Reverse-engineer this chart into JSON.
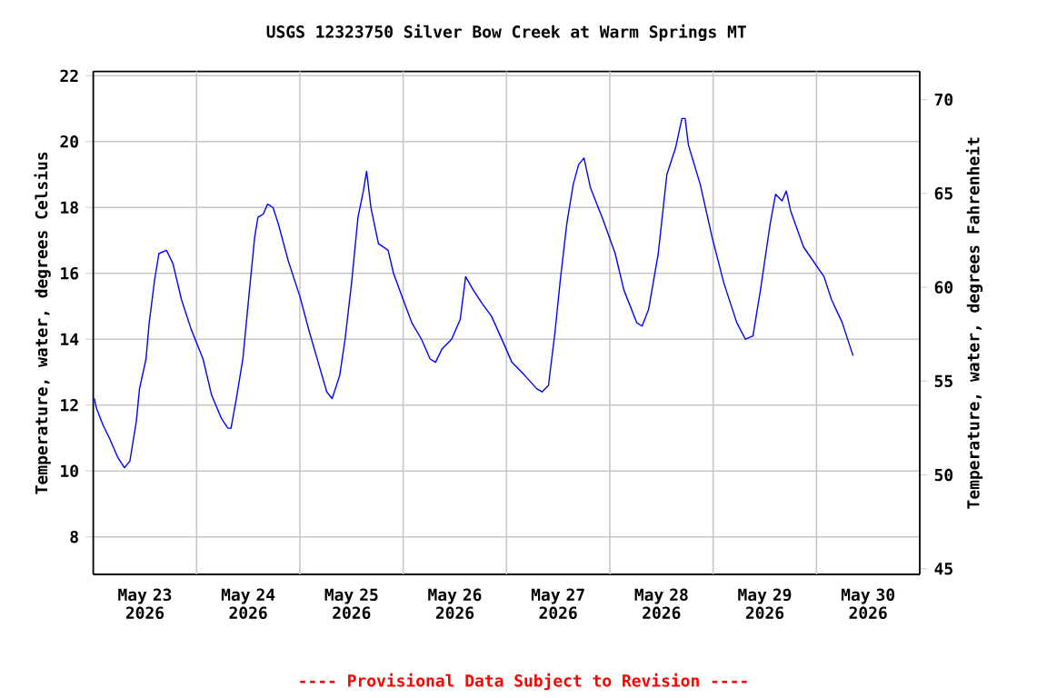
{
  "chart_data": {
    "type": "line",
    "title": "USGS 12323750 Silver Bow Creek at Warm Springs MT",
    "ylabel": "Temperature, water, degrees Celsius",
    "y2label": "Temperature, water, degrees Fahrenheit",
    "annotations": [
      "---- Provisional Data Subject to Revision ----"
    ],
    "xlim": [
      "2026-05-23",
      "2026-05-31"
    ],
    "xticks": [
      {
        "value": "2026-05-23T12:00",
        "label": "May 23 2026"
      },
      {
        "value": "2026-05-24T12:00",
        "label": "May 24 2026"
      },
      {
        "value": "2026-05-25T12:00",
        "label": "May 25 2026"
      },
      {
        "value": "2026-05-26T12:00",
        "label": "May 26 2026"
      },
      {
        "value": "2026-05-27T12:00",
        "label": "May 27 2026"
      },
      {
        "value": "2026-05-28T12:00",
        "label": "May 28 2026"
      },
      {
        "value": "2026-05-29T12:00",
        "label": "May 29 2026"
      },
      {
        "value": "2026-05-30T12:00",
        "label": "May 30 2026"
      },
      {
        "value": "2026-05-24",
        "label": null
      },
      {
        "value": "2026-05-25",
        "label": null
      },
      {
        "value": "2026-05-26",
        "label": null
      },
      {
        "value": "2026-05-27",
        "label": null
      },
      {
        "value": "2026-05-28",
        "label": null
      },
      {
        "value": "2026-05-29",
        "label": null
      },
      {
        "value": "2026-05-30",
        "label": null
      }
    ],
    "ylim": [
      6.86,
      22.13
    ],
    "yticks": [
      8,
      10,
      12,
      14,
      16,
      18,
      20,
      22
    ],
    "y2lim": [
      44.7,
      71.5
    ],
    "y2ticks": [
      45,
      50,
      55,
      60,
      65,
      70
    ],
    "grid": true,
    "marker": "none",
    "line_style": "solid",
    "x": [
      "2026-05-23T00:15",
      "2026-05-23T00:45",
      "2026-05-23T02:15",
      "2026-05-23T03:45",
      "2026-05-23T05:45",
      "2026-05-23T07:15",
      "2026-05-23T08:30",
      "2026-05-23T10:00",
      "2026-05-23T10:45",
      "2026-05-23T12:15",
      "2026-05-23T13:00",
      "2026-05-23T14:15",
      "2026-05-23T15:15",
      "2026-05-23T17:00",
      "2026-05-23T18:30",
      "2026-05-23T20:30",
      "2026-05-23T22:45",
      "2026-05-24T01:30",
      "2026-05-24T03:30",
      "2026-05-24T05:45",
      "2026-05-24T07:15",
      "2026-05-24T08:00",
      "2026-05-24T09:15",
      "2026-05-24T10:45",
      "2026-05-24T12:00",
      "2026-05-24T13:30",
      "2026-05-24T14:15",
      "2026-05-24T15:30",
      "2026-05-24T16:30",
      "2026-05-24T17:45",
      "2026-05-24T19:00",
      "2026-05-24T21:15",
      "2026-05-25T00:00",
      "2026-05-25T02:15",
      "2026-05-25T04:15",
      "2026-05-25T06:15",
      "2026-05-25T07:30",
      "2026-05-25T09:15",
      "2026-05-25T10:30",
      "2026-05-25T12:00",
      "2026-05-25T13:30",
      "2026-05-25T14:45",
      "2026-05-25T15:30",
      "2026-05-25T16:30",
      "2026-05-25T18:15",
      "2026-05-25T20:30",
      "2026-05-25T21:45",
      "2026-05-26T00:00",
      "2026-05-26T02:00",
      "2026-05-26T04:15",
      "2026-05-26T06:15",
      "2026-05-26T07:30",
      "2026-05-26T09:00",
      "2026-05-26T11:15",
      "2026-05-26T13:15",
      "2026-05-26T14:30",
      "2026-05-26T16:15",
      "2026-05-26T18:15",
      "2026-05-26T20:30",
      "2026-05-26T23:15",
      "2026-05-27T01:15",
      "2026-05-27T04:15",
      "2026-05-27T07:00",
      "2026-05-27T08:15",
      "2026-05-27T09:45",
      "2026-05-27T11:15",
      "2026-05-27T12:30",
      "2026-05-27T14:00",
      "2026-05-27T15:30",
      "2026-05-27T16:45",
      "2026-05-27T18:00",
      "2026-05-27T19:30",
      "2026-05-27T22:30",
      "2026-05-28T01:15",
      "2026-05-28T03:15",
      "2026-05-28T06:15",
      "2026-05-28T07:30",
      "2026-05-28T09:00",
      "2026-05-28T11:15",
      "2026-05-28T13:15",
      "2026-05-28T15:15",
      "2026-05-28T16:45",
      "2026-05-28T17:30",
      "2026-05-28T18:15",
      "2026-05-28T21:00",
      "2026-05-28T23:45",
      "2026-05-29T02:30",
      "2026-05-29T05:30",
      "2026-05-29T07:30",
      "2026-05-29T09:15",
      "2026-05-29T11:00",
      "2026-05-29T13:15",
      "2026-05-29T14:30",
      "2026-05-29T16:00",
      "2026-05-29T17:00",
      "2026-05-29T18:00",
      "2026-05-29T21:00",
      "2026-05-30T01:45",
      "2026-05-30T03:30",
      "2026-05-30T06:00",
      "2026-05-30T08:30"
    ],
    "series": [
      {
        "color": "#0000ff",
        "values": [
          12.2,
          11.9,
          11.4,
          11.0,
          10.4,
          10.1,
          10.3,
          11.5,
          12.5,
          13.4,
          14.5,
          15.8,
          16.6,
          16.7,
          16.3,
          15.2,
          14.3,
          13.4,
          12.3,
          11.6,
          11.3,
          11.3,
          12.2,
          13.4,
          15.1,
          17.1,
          17.7,
          17.8,
          18.1,
          18.0,
          17.5,
          16.4,
          15.3,
          14.2,
          13.3,
          12.4,
          12.2,
          12.9,
          14.0,
          15.7,
          17.7,
          18.5,
          19.1,
          18.0,
          16.9,
          16.7,
          16.0,
          15.2,
          14.5,
          14.0,
          13.4,
          13.3,
          13.7,
          14.0,
          14.6,
          15.9,
          15.5,
          15.1,
          14.7,
          13.9,
          13.3,
          12.9,
          12.5,
          12.4,
          12.6,
          14.2,
          15.8,
          17.5,
          18.7,
          19.3,
          19.5,
          18.6,
          17.6,
          16.6,
          15.5,
          14.5,
          14.4,
          14.9,
          16.6,
          19.0,
          19.8,
          20.7,
          20.7,
          19.9,
          18.7,
          17.1,
          15.7,
          14.5,
          14.0,
          14.1,
          15.5,
          17.5,
          18.4,
          18.2,
          18.5,
          17.9,
          16.8,
          15.9,
          15.2,
          14.5,
          13.5
        ]
      }
    ]
  }
}
